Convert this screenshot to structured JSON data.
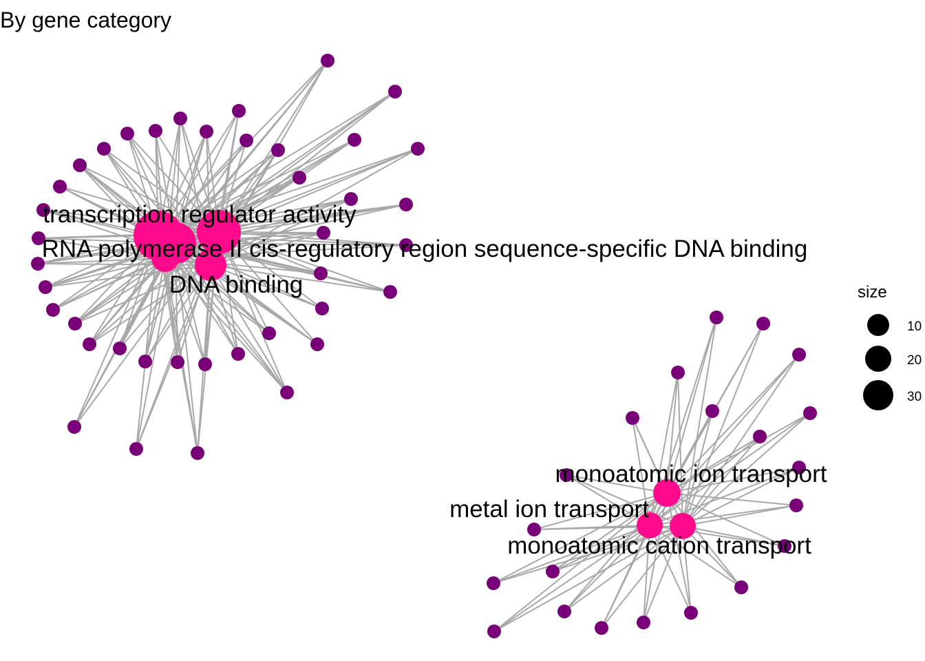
{
  "title": "By gene category",
  "legend": {
    "title": "size",
    "entries": [
      "10",
      "20",
      "30"
    ]
  },
  "colors": {
    "category_node": "#ff0a8c",
    "gene_node": "#7a007a",
    "edge": "#a8a8a8",
    "text": "#000000"
  },
  "clusters": [
    {
      "categories": [
        "transcription regulator activity",
        "RNA polymerase II cis-regulatory region sequence-specific DNA binding",
        "DNA binding"
      ]
    },
    {
      "categories": [
        "monoatomic ion transport",
        "metal ion transport",
        "monoatomic cation transport"
      ]
    }
  ]
}
